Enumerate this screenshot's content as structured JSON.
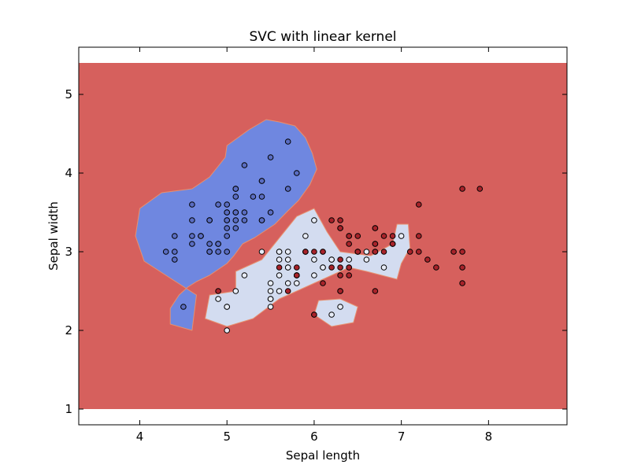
{
  "chart_data": {
    "type": "scatter",
    "title": "SVC with linear kernel",
    "xlabel": "Sepal length",
    "ylabel": "Sepal width",
    "xlim": [
      3.3,
      8.9
    ],
    "ylim": [
      0.8,
      5.6
    ],
    "xticks": [
      4,
      5,
      6,
      7,
      8
    ],
    "yticks": [
      1,
      2,
      3,
      4,
      5
    ],
    "grid": false,
    "legend": "none",
    "background_region": {
      "xrange": [
        3.3,
        8.9
      ],
      "yrange": [
        1.0,
        5.4
      ],
      "color": "#d6605d"
    },
    "regions": [
      {
        "class": "blue",
        "color": "#6f87e0",
        "polygon": [
          [
            4.6,
            3.8
          ],
          [
            4.8,
            3.95
          ],
          [
            4.98,
            4.2
          ],
          [
            5.0,
            4.35
          ],
          [
            5.25,
            4.55
          ],
          [
            5.45,
            4.68
          ],
          [
            5.6,
            4.65
          ],
          [
            5.78,
            4.6
          ],
          [
            5.9,
            4.45
          ],
          [
            5.98,
            4.25
          ],
          [
            6.03,
            4.05
          ],
          [
            5.95,
            3.85
          ],
          [
            5.82,
            3.65
          ],
          [
            5.7,
            3.52
          ],
          [
            5.55,
            3.35
          ],
          [
            5.32,
            3.18
          ],
          [
            5.18,
            3.1
          ],
          [
            5.08,
            2.95
          ],
          [
            5.0,
            2.85
          ],
          [
            4.8,
            2.7
          ],
          [
            4.65,
            2.62
          ],
          [
            4.55,
            2.55
          ],
          [
            4.45,
            2.45
          ],
          [
            4.35,
            2.28
          ],
          [
            4.35,
            2.08
          ],
          [
            4.6,
            2.0
          ],
          [
            4.65,
            2.45
          ],
          [
            4.3,
            2.7
          ],
          [
            4.05,
            2.88
          ],
          [
            3.95,
            3.2
          ],
          [
            4.0,
            3.55
          ],
          [
            4.25,
            3.75
          ]
        ]
      },
      {
        "class": "light",
        "color": "#d3dcf0",
        "polygon": [
          [
            4.75,
            2.15
          ],
          [
            4.8,
            2.45
          ],
          [
            5.1,
            2.5
          ],
          [
            5.1,
            2.75
          ],
          [
            5.4,
            2.9
          ],
          [
            5.8,
            3.45
          ],
          [
            6.0,
            3.55
          ],
          [
            6.15,
            3.25
          ],
          [
            6.3,
            3.0
          ],
          [
            6.65,
            2.95
          ],
          [
            6.9,
            3.1
          ],
          [
            6.95,
            3.35
          ],
          [
            7.08,
            3.35
          ],
          [
            7.1,
            3.05
          ],
          [
            7.0,
            2.85
          ],
          [
            6.95,
            2.65
          ],
          [
            6.6,
            2.75
          ],
          [
            6.4,
            2.8
          ],
          [
            6.1,
            2.65
          ],
          [
            5.9,
            2.55
          ],
          [
            5.6,
            2.4
          ],
          [
            5.3,
            2.15
          ],
          [
            5.0,
            2.05
          ]
        ]
      },
      {
        "class": "light",
        "color": "#d3dcf0",
        "polygon": [
          [
            6.0,
            2.2
          ],
          [
            6.2,
            2.05
          ],
          [
            6.45,
            2.1
          ],
          [
            6.5,
            2.3
          ],
          [
            6.3,
            2.4
          ],
          [
            6.05,
            2.38
          ]
        ]
      }
    ],
    "series": [
      {
        "class": "blue",
        "color": "#5a6dc2",
        "points": [
          [
            5.1,
            3.5
          ],
          [
            4.9,
            3.0
          ],
          [
            4.7,
            3.2
          ],
          [
            4.6,
            3.1
          ],
          [
            5.0,
            3.6
          ],
          [
            5.4,
            3.9
          ],
          [
            4.6,
            3.4
          ],
          [
            5.0,
            3.4
          ],
          [
            4.4,
            2.9
          ],
          [
            4.9,
            3.1
          ],
          [
            5.4,
            3.7
          ],
          [
            4.8,
            3.4
          ],
          [
            4.8,
            3.0
          ],
          [
            4.3,
            3.0
          ],
          [
            5.8,
            4.0
          ],
          [
            5.7,
            4.4
          ],
          [
            5.4,
            3.9
          ],
          [
            5.1,
            3.5
          ],
          [
            5.7,
            3.8
          ],
          [
            5.1,
            3.8
          ],
          [
            5.4,
            3.4
          ],
          [
            5.1,
            3.7
          ],
          [
            4.6,
            3.6
          ],
          [
            5.1,
            3.3
          ],
          [
            4.8,
            3.4
          ],
          [
            5.0,
            3.0
          ],
          [
            5.0,
            3.4
          ],
          [
            5.2,
            3.5
          ],
          [
            5.2,
            3.4
          ],
          [
            4.7,
            3.2
          ],
          [
            4.8,
            3.1
          ],
          [
            5.4,
            3.4
          ],
          [
            5.2,
            4.1
          ],
          [
            5.5,
            4.2
          ],
          [
            4.9,
            3.1
          ],
          [
            5.0,
            3.2
          ],
          [
            5.5,
            3.5
          ],
          [
            4.9,
            3.6
          ],
          [
            4.4,
            3.0
          ],
          [
            5.1,
            3.4
          ],
          [
            5.0,
            3.5
          ],
          [
            4.5,
            2.3
          ],
          [
            4.4,
            3.2
          ],
          [
            5.0,
            3.5
          ],
          [
            5.1,
            3.8
          ],
          [
            4.8,
            3.0
          ],
          [
            5.1,
            3.8
          ],
          [
            4.6,
            3.2
          ],
          [
            5.3,
            3.7
          ],
          [
            5.0,
            3.3
          ]
        ]
      },
      {
        "class": "light",
        "color": "#e8edf8",
        "points": [
          [
            5.5,
            2.3
          ],
          [
            5.7,
            2.8
          ],
          [
            4.9,
            2.4
          ],
          [
            5.2,
            2.7
          ],
          [
            5.0,
            2.0
          ],
          [
            5.9,
            3.0
          ],
          [
            6.0,
            2.2
          ],
          [
            5.6,
            2.9
          ],
          [
            5.6,
            3.0
          ],
          [
            5.8,
            2.7
          ],
          [
            6.2,
            2.2
          ],
          [
            5.6,
            2.5
          ],
          [
            5.9,
            3.2
          ],
          [
            6.1,
            2.8
          ],
          [
            6.3,
            2.5
          ],
          [
            6.1,
            2.8
          ],
          [
            6.6,
            3.0
          ],
          [
            6.0,
            2.9
          ],
          [
            5.7,
            2.6
          ],
          [
            5.5,
            2.4
          ],
          [
            5.5,
            2.4
          ],
          [
            5.8,
            2.7
          ],
          [
            6.0,
            2.7
          ],
          [
            5.4,
            3.0
          ],
          [
            6.0,
            3.4
          ],
          [
            6.7,
            3.1
          ],
          [
            6.3,
            2.3
          ],
          [
            5.6,
            3.0
          ],
          [
            5.5,
            2.5
          ],
          [
            5.5,
            2.6
          ],
          [
            6.1,
            3.0
          ],
          [
            5.8,
            2.6
          ],
          [
            5.0,
            2.3
          ],
          [
            5.6,
            2.7
          ],
          [
            5.7,
            3.0
          ],
          [
            5.7,
            2.9
          ],
          [
            6.2,
            2.9
          ],
          [
            5.1,
            2.5
          ],
          [
            5.7,
            2.8
          ],
          [
            7.0,
            3.2
          ],
          [
            6.4,
            2.9
          ],
          [
            6.6,
            2.9
          ],
          [
            6.8,
            2.8
          ],
          [
            6.3,
            3.3
          ],
          [
            5.0,
            2.3
          ],
          [
            6.9,
            3.1
          ],
          [
            6.2,
            2.9
          ],
          [
            6.4,
            3.2
          ],
          [
            5.9,
            3.0
          ],
          [
            6.7,
            3.0
          ]
        ]
      },
      {
        "class": "red",
        "color": "#a8232a",
        "points": [
          [
            6.3,
            3.3
          ],
          [
            5.8,
            2.7
          ],
          [
            7.1,
            3.0
          ],
          [
            6.3,
            2.9
          ],
          [
            6.5,
            3.0
          ],
          [
            7.6,
            3.0
          ],
          [
            4.9,
            2.5
          ],
          [
            7.3,
            2.9
          ],
          [
            6.7,
            2.5
          ],
          [
            7.2,
            3.6
          ],
          [
            6.5,
            3.2
          ],
          [
            6.4,
            2.7
          ],
          [
            6.8,
            3.0
          ],
          [
            5.7,
            2.5
          ],
          [
            5.8,
            2.8
          ],
          [
            6.4,
            3.2
          ],
          [
            6.5,
            3.0
          ],
          [
            7.7,
            3.8
          ],
          [
            7.7,
            2.6
          ],
          [
            6.0,
            2.2
          ],
          [
            6.9,
            3.2
          ],
          [
            5.6,
            2.8
          ],
          [
            7.7,
            2.8
          ],
          [
            6.3,
            2.7
          ],
          [
            6.7,
            3.3
          ],
          [
            7.2,
            3.2
          ],
          [
            6.2,
            2.8
          ],
          [
            6.1,
            3.0
          ],
          [
            6.4,
            2.8
          ],
          [
            7.2,
            3.0
          ],
          [
            7.4,
            2.8
          ],
          [
            7.9,
            3.8
          ],
          [
            6.4,
            2.8
          ],
          [
            6.3,
            2.8
          ],
          [
            6.1,
            2.6
          ],
          [
            7.7,
            3.0
          ],
          [
            6.3,
            3.4
          ],
          [
            6.4,
            3.1
          ],
          [
            6.0,
            3.0
          ],
          [
            6.9,
            3.1
          ],
          [
            6.7,
            3.1
          ],
          [
            6.9,
            3.1
          ],
          [
            5.8,
            2.7
          ],
          [
            6.8,
            3.2
          ],
          [
            6.7,
            3.3
          ],
          [
            6.7,
            3.0
          ],
          [
            6.3,
            2.5
          ],
          [
            6.5,
            3.0
          ],
          [
            6.2,
            3.4
          ],
          [
            5.9,
            3.0
          ]
        ]
      }
    ]
  }
}
